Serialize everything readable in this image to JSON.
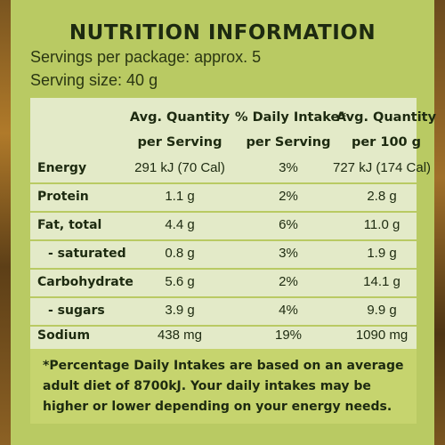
{
  "title": "NUTRITION INFORMATION",
  "servings_per_package": "Servings per package: approx. 5",
  "serving_size": "Serving size: 40 g",
  "columns": {
    "col1": [
      "Avg. Quantity",
      "per Serving"
    ],
    "col2": [
      "% Daily Intake*",
      "per Serving"
    ],
    "col3": [
      "Avg. Quantity",
      "per 100 g"
    ]
  },
  "rows": [
    {
      "label": "Energy",
      "per_serving": "291 kJ (70 Cal)",
      "daily_intake": "3%",
      "per_100g": "727 kJ (174 Cal)"
    },
    {
      "label": "Protein",
      "per_serving": "1.1 g",
      "daily_intake": "2%",
      "per_100g": "2.8 g"
    },
    {
      "label": "Fat, total",
      "per_serving": "4.4 g",
      "daily_intake": "6%",
      "per_100g": "11.0 g"
    },
    {
      "label": "- saturated",
      "per_serving": "0.8 g",
      "daily_intake": "3%",
      "per_100g": "1.9 g"
    },
    {
      "label": "Carbohydrate",
      "per_serving": "5.6 g",
      "daily_intake": "2%",
      "per_100g": "14.1 g"
    },
    {
      "label": "- sugars",
      "per_serving": "3.9 g",
      "daily_intake": "4%",
      "per_100g": "9.9 g"
    },
    {
      "label": "Sodium",
      "per_serving": "438 mg",
      "daily_intake": "19%",
      "per_100g": "1090 mg"
    }
  ],
  "footnote": "*Percentage Daily Intakes are based on an average adult diet of 8700kJ. Your daily intakes may be higher or lower depending on your energy needs.",
  "colors": {
    "panel_green": "#b9ca63",
    "table_background": "#e3eac8",
    "text_dark": "#1d2a10"
  }
}
